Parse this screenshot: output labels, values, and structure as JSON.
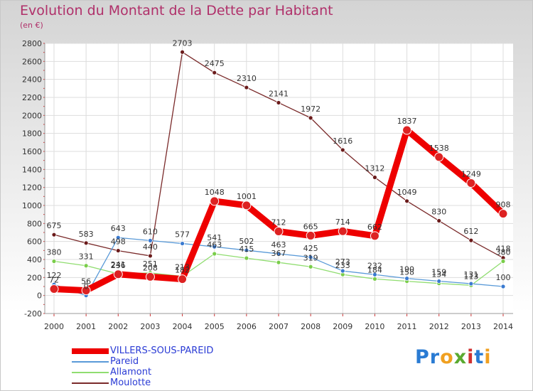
{
  "header": {
    "title": "Evolution du Montant de la Dette par Habitant",
    "subtitle": "(en €)"
  },
  "logo": {
    "text": "Proxiti",
    "letters": [
      {
        "char": "P",
        "color": "#2a7bd3"
      },
      {
        "char": "r",
        "color": "#2a7bd3"
      },
      {
        "char": "o",
        "color": "#f0a020"
      },
      {
        "char": "x",
        "color": "#5aaa30"
      },
      {
        "char": "i",
        "color": "#d03030"
      },
      {
        "char": "t",
        "color": "#2a7bd3"
      },
      {
        "char": "i",
        "color": "#f0a020"
      }
    ]
  },
  "chart_data": {
    "type": "line",
    "title": "Evolution du Montant de la Dette par Habitant",
    "ylabel": "(en €)",
    "xlabel": "",
    "categories": [
      "2000",
      "2001",
      "2002",
      "2003",
      "2004",
      "2005",
      "2006",
      "2007",
      "2008",
      "2009",
      "2010",
      "2011",
      "2012",
      "2013",
      "2014"
    ],
    "ylim": [
      -200,
      2800
    ],
    "yticks": [
      "-200",
      "0",
      "200",
      "400",
      "600",
      "800",
      "1000",
      "1200",
      "1400",
      "1600",
      "1800",
      "2000",
      "2200",
      "2400",
      "2600",
      "2800"
    ],
    "grid": true,
    "legend_position": "bottom-left",
    "series": [
      {
        "name": "Moulotte",
        "color": "#7a2a2a",
        "marker": "#6a1a1a",
        "values": [
          675,
          583,
          498,
          440,
          2703,
          2475,
          2310,
          2141,
          1972,
          1616,
          1312,
          1049,
          830,
          612,
          418
        ],
        "labels": [
          "675",
          "583",
          "498",
          "440",
          "2703",
          "2475",
          "2310",
          "2141",
          "1972",
          "1616",
          "1312",
          "1049",
          "830",
          "612",
          "418"
        ]
      },
      {
        "name": "Allamont",
        "color": "#90dd70",
        "marker": "#7acd4a",
        "values": [
          380,
          331,
          241,
          251,
          213,
          463,
          415,
          367,
          319,
          233,
          184,
          158,
          134,
          113,
          380
        ],
        "labels": [
          "380",
          "331",
          "241",
          "251",
          "213",
          "463",
          "415",
          "367",
          "319",
          "233",
          "184",
          "158",
          "134",
          "113",
          "380"
        ]
      },
      {
        "name": "Pareid",
        "color": "#5a9ad8",
        "marker": "#3a7ad0",
        "values": [
          122,
          0,
          643,
          610,
          577,
          541,
          502,
          463,
          425,
          273,
          232,
          190,
          159,
          131,
          100
        ],
        "labels": [
          "122",
          "0",
          "643",
          "610",
          "577",
          "541",
          "502",
          "463",
          "425",
          "273",
          "232",
          "190",
          "159",
          "131",
          "100"
        ]
      },
      {
        "name": "VILLERS-SOUS-PAREID",
        "color": "#ee0000",
        "marker": "#dd2222",
        "values": [
          72,
          56,
          236,
          208,
          182,
          1048,
          1001,
          712,
          665,
          714,
          662,
          1837,
          1538,
          1249,
          908
        ],
        "labels": [
          "72",
          "56",
          "236",
          "208",
          "182",
          "1048",
          "1001",
          "712",
          "665",
          "714",
          "662",
          "1837",
          "1538",
          "1249",
          "908"
        ]
      }
    ],
    "legend_order": [
      "VILLERS-SOUS-PAREID",
      "Pareid",
      "Allamont",
      "Moulotte"
    ]
  }
}
